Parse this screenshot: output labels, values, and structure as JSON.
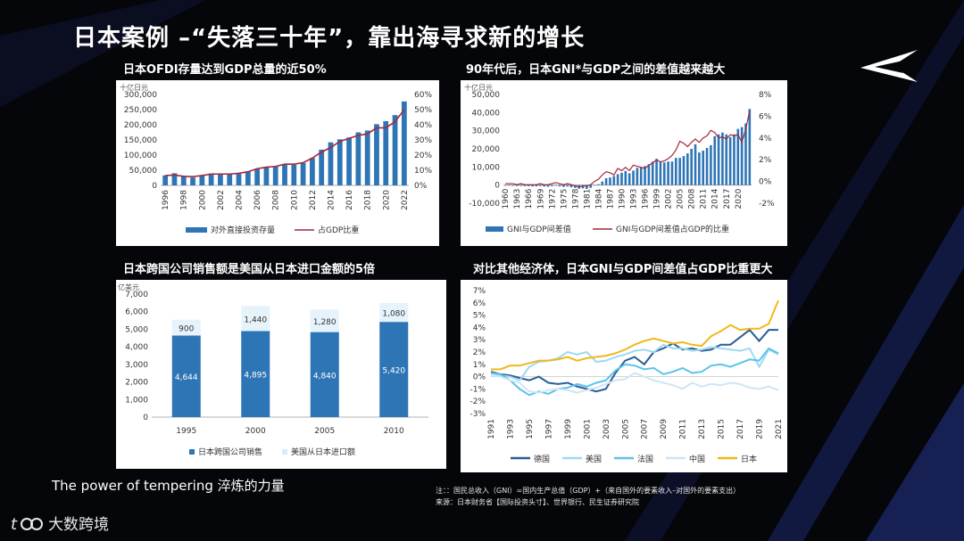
{
  "title": "日本案例 –“失落三十年”，靠出海寻求新的增长",
  "tagline": "The power of tempering 淬炼的力量",
  "brand": {
    "name": "大数跨境",
    "logo": "tb-logo-icon"
  },
  "footnote": {
    "line1": "注：：国民总收入（GNI）=国内生产总值（GDP）+（来自国外的要素收入–对国外的要素支出）",
    "line2": "来源：日本财务省【国际投资头寸】、世界银行、民生证券研究院"
  },
  "colors": {
    "bar": "#2e75b6",
    "red": "#a4283a",
    "orange": "#f0b81b",
    "light": "#9ed9f2",
    "pale": "#cfe6f5",
    "dark": "#2b5d96"
  },
  "chart_data": [
    {
      "type": "bar",
      "title": "日本OFDI存量达到GDP总量的近50%",
      "unit": "十亿日元",
      "categories": [
        "1996",
        "1997",
        "1998",
        "1999",
        "2000",
        "2001",
        "2002",
        "2003",
        "2004",
        "2005",
        "2006",
        "2007",
        "2008",
        "2009",
        "2010",
        "2011",
        "2012",
        "2013",
        "2014",
        "2015",
        "2016",
        "2017",
        "2018",
        "2019",
        "2020",
        "2021",
        "2022"
      ],
      "xticks": [
        "1996",
        "1998",
        "2000",
        "2002",
        "2004",
        "2006",
        "2008",
        "2010",
        "2012",
        "2014",
        "2016",
        "2018",
        "2020",
        "2022"
      ],
      "series": [
        {
          "name": "对外直接投资存量",
          "axis": "left",
          "values": [
            33000,
            40000,
            31000,
            26000,
            32000,
            39000,
            37000,
            36000,
            38000,
            46000,
            53000,
            61000,
            62000,
            69000,
            68000,
            74000,
            90000,
            118000,
            142000,
            152000,
            158000,
            175000,
            181000,
            202000,
            212000,
            232000,
            277000
          ]
        },
        {
          "name": "占GDP比重",
          "axis": "right",
          "values": [
            6.5,
            6.8,
            6,
            5.8,
            6.5,
            7.5,
            7.5,
            7.5,
            8,
            9,
            11,
            12,
            12.5,
            14,
            14,
            15,
            18,
            22,
            25,
            29,
            31,
            33,
            34,
            38,
            38,
            42,
            50
          ]
        }
      ],
      "yticks_left": [
        "0",
        "50,000",
        "100,000",
        "150,000",
        "200,000",
        "250,000",
        "300,000"
      ],
      "yticks_right": [
        "0%",
        "10%",
        "20%",
        "30%",
        "40%",
        "50%",
        "60%"
      ],
      "ylim_left": [
        0,
        300000
      ],
      "ylim_right": [
        0,
        60
      ],
      "legend": "bottom"
    },
    {
      "type": "bar",
      "title": "90年代后，日本GNI*与GDP之间的差值越来越大",
      "unit": "十亿日元",
      "xticks": [
        "1960",
        "1963",
        "1966",
        "1969",
        "1972",
        "1975",
        "1978",
        "1981",
        "1984",
        "1987",
        "1990",
        "1993",
        "1996",
        "1999",
        "2002",
        "2005",
        "2008",
        "2011",
        "2014",
        "2017",
        "2020"
      ],
      "series": [
        {
          "name": "GNI与GDP间差值",
          "axis": "left",
          "x0": 1960,
          "values": [
            -300,
            -350,
            -400,
            -500,
            -450,
            -550,
            -600,
            -700,
            -650,
            -600,
            -800,
            -900,
            -600,
            -300,
            -700,
            -1000,
            -800,
            -1200,
            -1500,
            -2000,
            -1800,
            -2100,
            -1500,
            -200,
            500,
            2000,
            3800,
            4200,
            5000,
            6000,
            6800,
            7800,
            6500,
            8000,
            9500,
            9800,
            10500,
            11500,
            13000,
            14500,
            12800,
            12500,
            13000,
            13000,
            15000,
            15000,
            16000,
            17500,
            20000,
            22500,
            18000,
            19000,
            20500,
            22000,
            27000,
            28000,
            29000,
            28000,
            26500,
            28000,
            31000,
            32000,
            34000,
            42000
          ]
        },
        {
          "name": "GNI与GDP间差值占GDP的比重",
          "axis": "right",
          "x0": 1960,
          "values": [
            -0.2,
            -0.2,
            -0.2,
            -0.3,
            -0.2,
            -0.3,
            -0.3,
            -0.3,
            -0.3,
            -0.2,
            -0.3,
            -0.3,
            -0.2,
            -0.1,
            -0.2,
            -0.3,
            -0.2,
            -0.3,
            -0.4,
            -0.5,
            -0.4,
            -0.4,
            -0.3,
            0,
            0.2,
            0.6,
            0.9,
            0.8,
            0.6,
            1.2,
            1,
            1.3,
            1,
            1.5,
            1.4,
            1.3,
            1.2,
            1.5,
            1.7,
            2,
            1.8,
            1.9,
            2.1,
            2.4,
            2.9,
            3.7,
            3.5,
            3.2,
            3.6,
            3.9,
            3.6,
            4,
            4.2,
            4.7,
            4.5,
            4,
            4.1,
            3.9,
            4.3,
            4.2,
            4.3,
            3.6,
            4.8,
            6.5
          ]
        }
      ],
      "yticks_left": [
        "-10,000",
        "0",
        "10,000",
        "20,000",
        "30,000",
        "40,000",
        "50,000"
      ],
      "yticks_right": [
        "-2%",
        "0%",
        "2%",
        "4%",
        "6%",
        "8%"
      ],
      "ylim_left": [
        -10000,
        50000
      ],
      "ylim_right": [
        -2,
        8
      ],
      "legend": "bottom"
    },
    {
      "type": "bar",
      "title": "日本跨国公司销售额是美国从日本进口金额的5倍",
      "unit": "亿美元",
      "categories": [
        "1995",
        "2000",
        "2005",
        "2010"
      ],
      "series": [
        {
          "name": "日本跨国公司销售",
          "values": [
            4644,
            4895,
            4840,
            5420
          ],
          "labels": [
            "4,644",
            "4,895",
            "4,840",
            "5,420"
          ]
        },
        {
          "name": "美国从日本进口额",
          "values": [
            900,
            1440,
            1280,
            1080
          ],
          "labels": [
            "900",
            "1,440",
            "1,280",
            "1,080"
          ]
        }
      ],
      "yticks": [
        "0",
        "1,000",
        "2,000",
        "3,000",
        "4,000",
        "5,000",
        "6,000",
        "7,000"
      ],
      "ylim": [
        0,
        7000
      ],
      "legend": "bottom"
    },
    {
      "type": "line",
      "title": "对比其他经济体，日本GNI与GDP间差值占GDP比重更大",
      "x0": 1991,
      "xticks": [
        "1991",
        "1993",
        "1995",
        "1997",
        "1999",
        "2001",
        "2003",
        "2005",
        "2007",
        "2009",
        "2011",
        "2013",
        "2015",
        "2017",
        "2019",
        "2021"
      ],
      "series": [
        {
          "name": "德国",
          "color": "#2b5d96",
          "values": [
            0.4,
            0.2,
            0.1,
            -0.1,
            -0.3,
            0,
            -0.5,
            -0.6,
            -0.5,
            -0.8,
            -1.0,
            -1.2,
            -1.0,
            0.3,
            1.3,
            1.6,
            1.0,
            2.0,
            2.3,
            2.7,
            2.2,
            2.3,
            2.1,
            2.2,
            2.6,
            2.6,
            3.2,
            3.8,
            2.9,
            3.8,
            3.8
          ]
        },
        {
          "name": "美国",
          "color": "#9ed9f2",
          "values": [
            0.3,
            0.1,
            0.0,
            -0.3,
            0.8,
            1.2,
            1.3,
            1.5,
            2.0,
            1.8,
            2.0,
            1.2,
            1.3,
            1.6,
            1.8,
            2.1,
            2.2,
            2.0,
            2.6,
            2.3,
            2.3,
            2.1,
            2.2,
            2.4,
            2.3,
            2.2,
            2.1,
            2.3,
            0.8,
            2.2,
            1.8
          ]
        },
        {
          "name": "法国",
          "color": "#5cc3ea",
          "values": [
            0.3,
            0.2,
            -0.3,
            -1.0,
            -1.5,
            -1.2,
            -1.4,
            -1.0,
            -0.9,
            -0.6,
            -0.8,
            -0.5,
            -0.3,
            0.5,
            1.0,
            0.9,
            0.6,
            0.7,
            0.2,
            0.4,
            0.7,
            0.3,
            0.4,
            0.9,
            1.0,
            0.8,
            1.1,
            1.4,
            1.3,
            2.3,
            1.9
          ]
        },
        {
          "name": "中国",
          "color": "#cfe6f5",
          "values": [
            0.1,
            0.0,
            -0.3,
            -0.5,
            -1.2,
            -1.3,
            -1.1,
            -1.0,
            -1.1,
            -1.3,
            -1.1,
            -0.9,
            -0.6,
            -0.3,
            -0.2,
            0.3,
            0.0,
            -0.3,
            -0.5,
            -0.7,
            -1.0,
            -0.5,
            -0.8,
            -0.6,
            -0.7,
            -0.5,
            -0.6,
            -0.9,
            -1.0,
            -0.8,
            -1.1
          ]
        },
        {
          "name": "日本",
          "color": "#f0b81b",
          "values": [
            0.6,
            0.6,
            0.9,
            0.9,
            1.1,
            1.3,
            1.3,
            1.4,
            1.6,
            1.3,
            1.5,
            1.6,
            1.7,
            1.9,
            2.2,
            2.6,
            2.9,
            3.1,
            2.9,
            2.7,
            2.8,
            2.6,
            2.5,
            3.3,
            3.7,
            4.2,
            3.8,
            3.9,
            3.9,
            4.3,
            6.2
          ]
        }
      ],
      "yticks": [
        "-3%",
        "-2%",
        "-1%",
        "0%",
        "1%",
        "2%",
        "3%",
        "4%",
        "5%",
        "6%",
        "7%"
      ],
      "ylim": [
        -3,
        7
      ],
      "legend": "bottom"
    }
  ]
}
